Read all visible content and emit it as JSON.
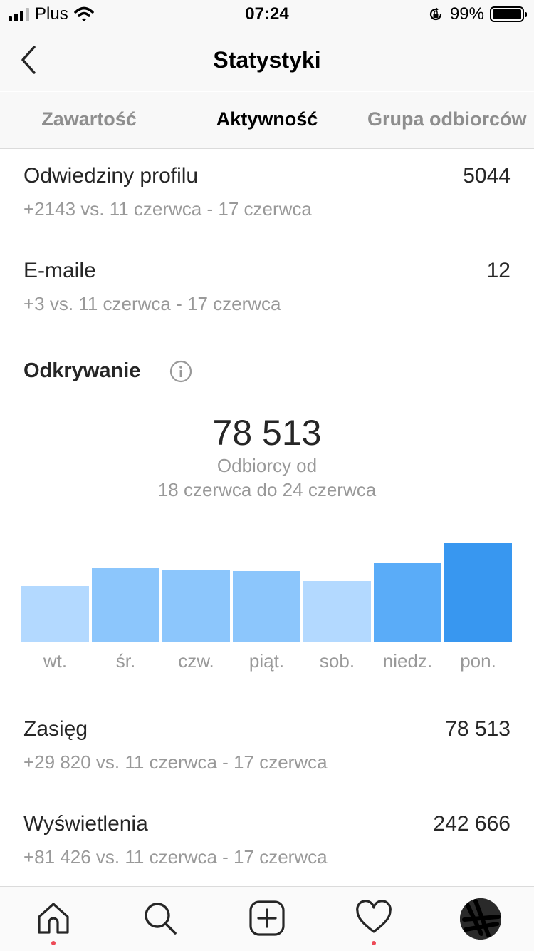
{
  "status_bar": {
    "carrier": "Plus",
    "time": "07:24",
    "battery_percent": "99%",
    "battery_level": 0.99
  },
  "nav": {
    "title": "Statystyki",
    "back_icon": "chevron-left-icon"
  },
  "tabs": [
    {
      "label": "Zawartość",
      "active": false
    },
    {
      "label": "Aktywność",
      "active": true
    },
    {
      "label": "Grupa odbiorców",
      "active": false
    }
  ],
  "interactions": [
    {
      "label": "Odwiedziny profilu",
      "value": "5044",
      "comparison": "+2143 vs. 11 czerwca - 17 czerwca"
    },
    {
      "label": "E-maile",
      "value": "12",
      "comparison": "+3 vs. 11 czerwca - 17 czerwca"
    }
  ],
  "discovery": {
    "title": "Odkrywanie",
    "info_icon": "info-icon",
    "total": "78 513",
    "total_caption_1": "Odbiorcy od",
    "total_caption_2": "18 czerwca do 24 czerwca"
  },
  "chart_data": {
    "type": "bar",
    "categories": [
      "wt.",
      "śr.",
      "czw.",
      "piąt.",
      "sob.",
      "niedz.",
      "pon."
    ],
    "values": [
      7800,
      10300,
      10100,
      9900,
      8500,
      11000,
      13800
    ],
    "ylim": [
      0,
      16000
    ],
    "colors": [
      "#b3d9ff",
      "#8cc6fc",
      "#8cc6fc",
      "#8cc6fc",
      "#b3d9ff",
      "#5aacf8",
      "#3897f0"
    ]
  },
  "metrics": [
    {
      "label": "Zasięg",
      "value": "78 513",
      "comparison": "+29 820 vs. 11 czerwca - 17 czerwca"
    },
    {
      "label": "Wyświetlenia",
      "value": "242 666",
      "comparison": "+81 426 vs. 11 czerwca - 17 czerwca"
    }
  ],
  "tab_bar": [
    {
      "icon": "home-icon",
      "badge": true
    },
    {
      "icon": "search-icon",
      "badge": false
    },
    {
      "icon": "add-post-icon",
      "badge": false
    },
    {
      "icon": "heart-icon",
      "badge": true
    },
    {
      "icon": "profile-avatar-icon",
      "badge": false
    }
  ],
  "colors": {
    "accent": "#3897f0",
    "badge": "#ed4956",
    "muted_text": "#999999"
  }
}
